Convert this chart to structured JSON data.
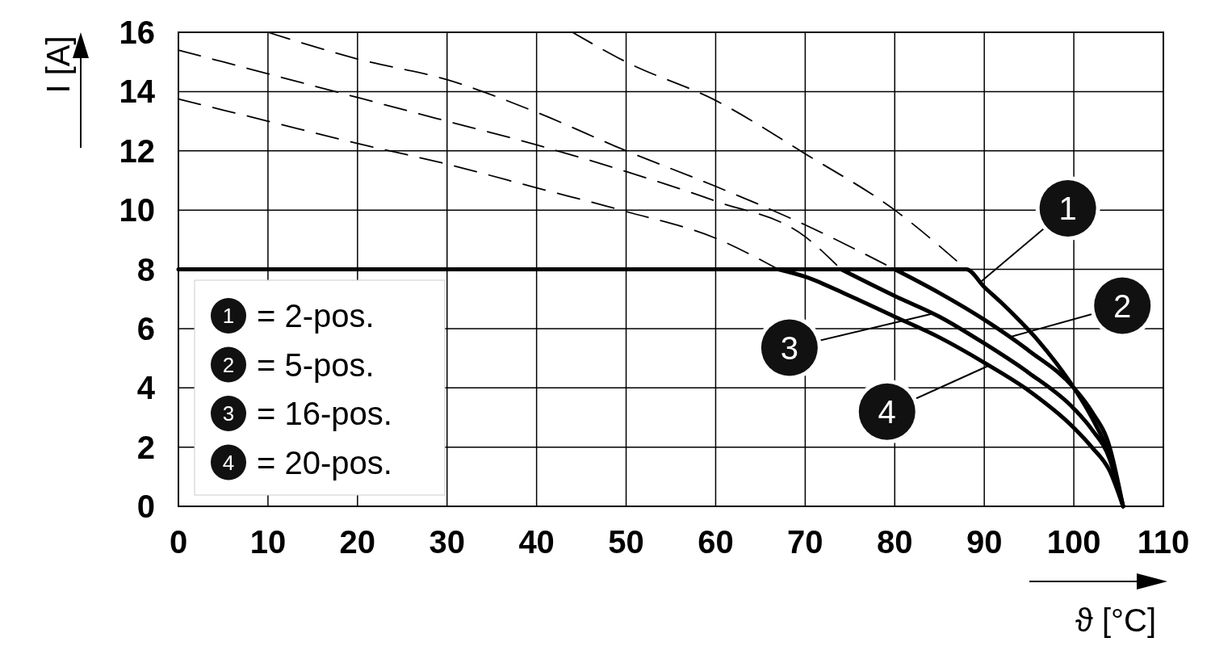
{
  "chart_data": {
    "type": "line",
    "xlabel": "ϑ [°C]",
    "ylabel": "I [A]",
    "xlim": [
      0,
      110
    ],
    "ylim": [
      0,
      16
    ],
    "xticks": [
      0,
      10,
      20,
      30,
      40,
      50,
      60,
      70,
      80,
      90,
      100,
      110
    ],
    "yticks": [
      0,
      2,
      4,
      6,
      8,
      10,
      12,
      14,
      16
    ],
    "grid": true,
    "series": [
      {
        "color": "#000000",
        "line_style": "solid",
        "x": [
          0,
          88,
          90,
          92,
          94,
          96,
          98,
          100,
          102,
          104,
          105.5
        ],
        "values": [
          8,
          8,
          7.4,
          6.85,
          6.25,
          5.6,
          4.85,
          4.0,
          3.0,
          1.7,
          0
        ]
      },
      {
        "color": "#000000",
        "line_style": "solid",
        "x": [
          80,
          85,
          90,
          95,
          100,
          102,
          104,
          105.5
        ],
        "values": [
          8,
          7.2,
          6.3,
          5.25,
          4.0,
          3.2,
          2.0,
          0
        ]
      },
      {
        "color": "#000000",
        "line_style": "solid",
        "x": [
          74,
          80,
          85,
          90,
          95,
          100,
          102,
          104,
          105.5
        ],
        "values": [
          8,
          7.1,
          6.4,
          5.5,
          4.5,
          3.3,
          2.6,
          1.6,
          0
        ]
      },
      {
        "color": "#000000",
        "line_style": "solid",
        "x": [
          67,
          70,
          75,
          80,
          85,
          90,
          95,
          100,
          102,
          104,
          105.5
        ],
        "values": [
          8,
          7.75,
          7.1,
          6.4,
          5.7,
          4.85,
          3.9,
          2.65,
          2.0,
          1.2,
          0
        ]
      },
      {
        "color": "#000000",
        "line_style": "dashed",
        "x": [
          44,
          50,
          60,
          70,
          80,
          88
        ],
        "values": [
          16,
          15.0,
          13.7,
          11.9,
          10.0,
          8
        ]
      },
      {
        "color": "#000000",
        "line_style": "dashed",
        "x": [
          10,
          20,
          30,
          40,
          50,
          60,
          70,
          80
        ],
        "values": [
          16,
          15.1,
          14.4,
          13.3,
          12.0,
          10.8,
          9.5,
          8
        ]
      },
      {
        "color": "#000000",
        "line_style": "dashed",
        "x": [
          0,
          10,
          20,
          30,
          40,
          50,
          60,
          70,
          74
        ],
        "values": [
          15.4,
          14.6,
          13.8,
          13.0,
          12.2,
          11.3,
          10.3,
          9.1,
          8
        ]
      },
      {
        "color": "#000000",
        "line_style": "dashed",
        "x": [
          0,
          10,
          20,
          30,
          40,
          50,
          60,
          67
        ],
        "values": [
          13.75,
          13.0,
          12.25,
          11.55,
          10.75,
          9.95,
          9.05,
          8
        ]
      }
    ],
    "annotations": [
      {
        "text": "1",
        "x": 89.5,
        "y": 7.55
      },
      {
        "text": "2",
        "x": 92.8,
        "y": 5.71
      },
      {
        "text": "3",
        "x": 84.2,
        "y": 6.5
      },
      {
        "text": "4",
        "x": 90.5,
        "y": 4.75
      },
      "= 2-pos.",
      "= 5-pos.",
      "= 16-pos.",
      "= 20-pos."
    ]
  }
}
